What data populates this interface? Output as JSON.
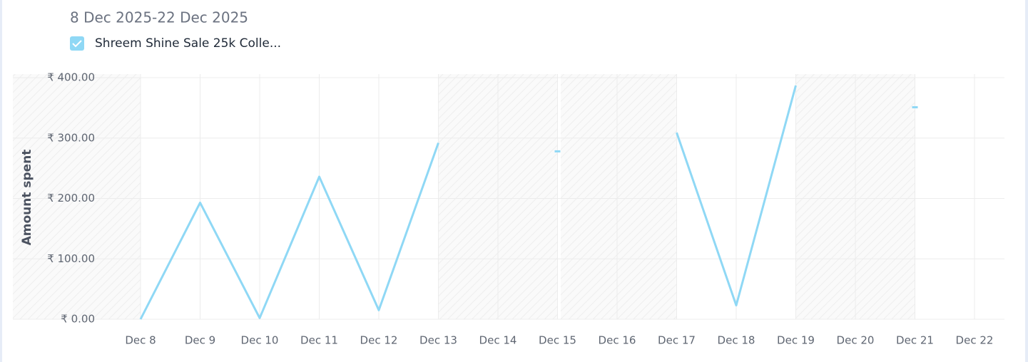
{
  "chart_data": {
    "type": "line",
    "subtitle": "8 Dec 2025-22 Dec 2025",
    "y_label": "Amount spent",
    "categories": [
      "Dec 8",
      "Dec 9",
      "Dec 10",
      "Dec 11",
      "Dec 12",
      "Dec 13",
      "Dec 14",
      "Dec 15",
      "Dec 16",
      "Dec 17",
      "Dec 18",
      "Dec 19",
      "Dec 20",
      "Dec 21",
      "Dec 22"
    ],
    "series": [
      {
        "name": "Shreem Shine Sale 25k Colle...",
        "color": "#8fd8f5",
        "values": [
          0,
          193,
          2,
          236,
          15,
          292,
          null,
          278,
          null,
          309,
          23,
          387,
          null,
          351,
          null
        ]
      }
    ],
    "ylim": [
      0,
      400
    ],
    "yticks": [
      {
        "value": 0,
        "label": "₹ 0.00"
      },
      {
        "value": 100,
        "label": "₹ 100.00"
      },
      {
        "value": 200,
        "label": "₹ 200.00"
      },
      {
        "value": 300,
        "label": "₹ 300.00"
      },
      {
        "value": 400,
        "label": "₹ 400.00"
      }
    ],
    "grid": true
  }
}
